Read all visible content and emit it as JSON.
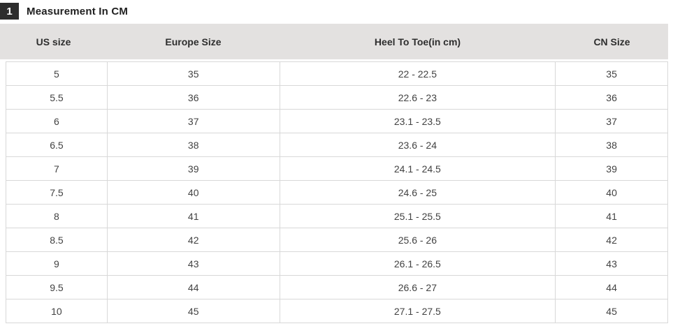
{
  "title": {
    "badge": "1",
    "text": "Measurement In CM"
  },
  "table": {
    "headers": [
      "US size",
      "Europe Size",
      "Heel To Toe(in cm)",
      "CN Size"
    ],
    "rows": [
      [
        "5",
        "35",
        "22 - 22.5",
        "35"
      ],
      [
        "5.5",
        "36",
        "22.6 - 23",
        "36"
      ],
      [
        "6",
        "37",
        "23.1 - 23.5",
        "37"
      ],
      [
        "6.5",
        "38",
        "23.6 - 24",
        "38"
      ],
      [
        "7",
        "39",
        "24.1 - 24.5",
        "39"
      ],
      [
        "7.5",
        "40",
        "24.6 - 25",
        "40"
      ],
      [
        "8",
        "41",
        "25.1 - 25.5",
        "41"
      ],
      [
        "8.5",
        "42",
        "25.6 - 26",
        "42"
      ],
      [
        "9",
        "43",
        "26.1 - 26.5",
        "43"
      ],
      [
        "9.5",
        "44",
        "26.6 - 27",
        "44"
      ],
      [
        "10",
        "45",
        "27.1 - 27.5",
        "45"
      ]
    ]
  },
  "colors": {
    "badge_bg": "#2d2d2d",
    "badge_text": "#ffffff",
    "title_text": "#1f1f1f",
    "header_bg": "#e3e1e0",
    "header_text": "#2e2e2e",
    "row_bg": "#ffffff",
    "row_border": "#d8d8d8",
    "cell_text": "#424242"
  }
}
